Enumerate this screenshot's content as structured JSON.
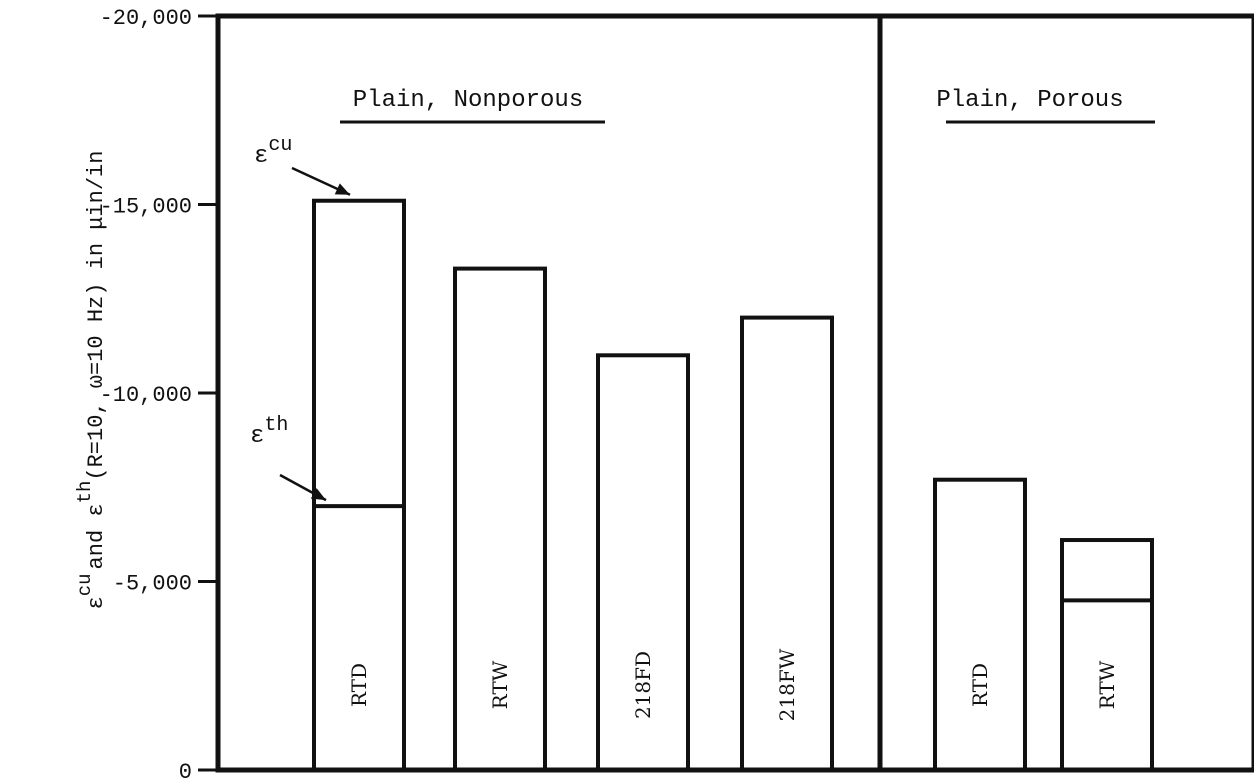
{
  "chart_data": {
    "type": "bar",
    "ylabel": {
      "pre_sup": "ε",
      "sup1": "cu",
      "mid": "and ε",
      "sup2": "th",
      "tail": "(R=10, ω=10 Hz) in μin/in"
    },
    "ylim": [
      0,
      -20000
    ],
    "yticks": [
      {
        "value": 0,
        "label": "0"
      },
      {
        "value": -5000,
        "label": "-5,000"
      },
      {
        "value": -10000,
        "label": "-10,000"
      },
      {
        "value": -15000,
        "label": "-15,000"
      },
      {
        "value": -20000,
        "label": "-20,000"
      }
    ],
    "grid": false,
    "groups": [
      {
        "label": "Plain, Nonporous",
        "bars": [
          {
            "category": "RTD",
            "ecu": -15100,
            "eth": -7000
          },
          {
            "category": "RTW",
            "ecu": -13300
          },
          {
            "category": "218FD",
            "ecu": -11000
          },
          {
            "category": "218FW",
            "ecu": -12000
          }
        ]
      },
      {
        "label": "Plain, Porous",
        "bars": [
          {
            "category": "RTD",
            "ecu": -7700
          },
          {
            "category": "RTW",
            "ecu": -6100,
            "eth": -4500
          }
        ]
      }
    ],
    "annotations": [
      {
        "base": "ε",
        "sup": "cu",
        "target": "ecu"
      },
      {
        "base": "ε",
        "sup": "th",
        "target": "eth"
      }
    ]
  }
}
